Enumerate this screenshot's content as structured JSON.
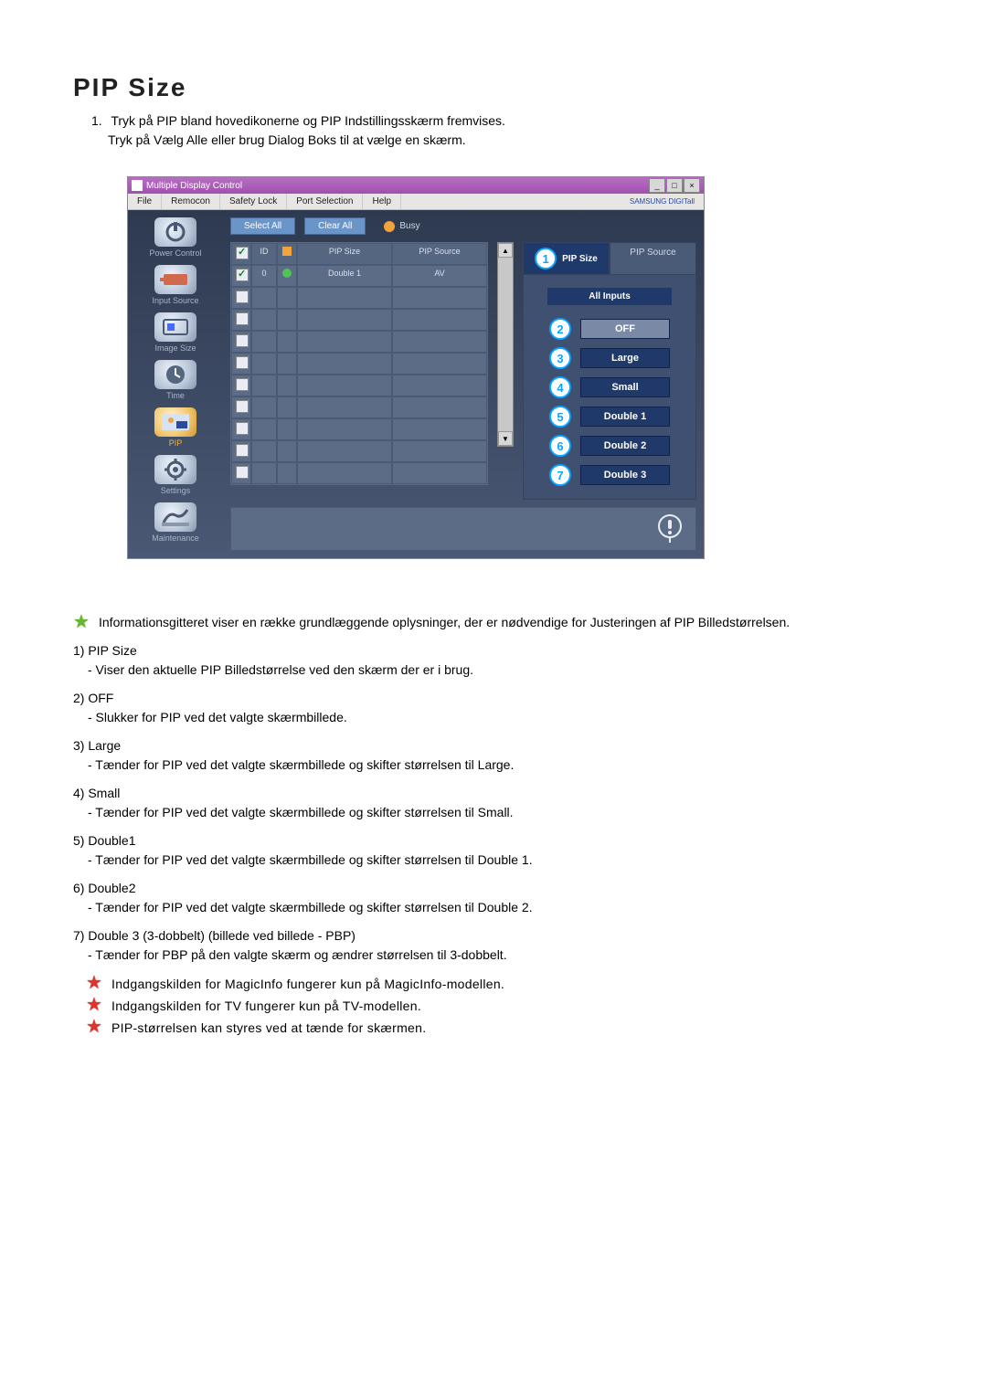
{
  "title": "PIP Size",
  "intro": {
    "num": "1.",
    "line1": "Tryk på PIP bland hovedikonerne og PIP Indstillingsskærm fremvises.",
    "line2": "Tryk på Vælg Alle eller brug Dialog Boks til at vælge en skærm."
  },
  "app": {
    "windowTitle": "Multiple Display Control",
    "brand": "SAMSUNG DIGITall",
    "menu": [
      "File",
      "Remocon",
      "Safety Lock",
      "Port Selection",
      "Help"
    ],
    "sidebar": [
      {
        "label": "Power Control",
        "active": false
      },
      {
        "label": "Input Source",
        "active": false
      },
      {
        "label": "Image Size",
        "active": false
      },
      {
        "label": "Time",
        "active": false
      },
      {
        "label": "PIP",
        "active": true
      },
      {
        "label": "Settings",
        "active": false
      },
      {
        "label": "Maintenance",
        "active": false
      }
    ],
    "buttons": {
      "selectAll": "Select All",
      "clearAll": "Clear All"
    },
    "busy": "Busy",
    "grid": {
      "headers": {
        "chk": "✓",
        "id": "ID",
        "status": "",
        "size": "PIP Size",
        "source": "PIP Source"
      },
      "row": {
        "id": "0",
        "size": "Double 1",
        "source": "AV"
      },
      "blankRows": 9
    },
    "tabs": {
      "pipSize": "PIP Size",
      "pipSource": "PIP Source"
    },
    "allInputs": "All Inputs",
    "options": [
      {
        "num": "2",
        "label": "OFF",
        "variant": "off"
      },
      {
        "num": "3",
        "label": "Large",
        "variant": "normal"
      },
      {
        "num": "4",
        "label": "Small",
        "variant": "normal"
      },
      {
        "num": "5",
        "label": "Double 1",
        "variant": "normal"
      },
      {
        "num": "6",
        "label": "Double 2",
        "variant": "normal"
      },
      {
        "num": "7",
        "label": "Double 3",
        "variant": "normal"
      }
    ],
    "tabBadge": "1"
  },
  "infoText": "Informationsgitteret viser en række grundlæggende oplysninger, der er nødvendige for Justeringen af PIP Billedstørrelsen.",
  "explain": [
    {
      "n": "1)",
      "label": "PIP Size",
      "desc": "- Viser den aktuelle PIP Billedstørrelse ved den skærm der er i brug."
    },
    {
      "n": "2)",
      "label": "OFF",
      "desc": "- Slukker for PIP ved det valgte skærmbillede."
    },
    {
      "n": "3)",
      "label": "Large",
      "desc": "- Tænder for PIP ved det valgte skærmbillede og skifter størrelsen til Large."
    },
    {
      "n": "4)",
      "label": "Small",
      "desc": "- Tænder for PIP ved det valgte skærmbillede og skifter størrelsen til Small."
    },
    {
      "n": "5)",
      "label": "Double1",
      "desc": "- Tænder for PIP ved det valgte skærmbillede og skifter størrelsen til Double 1."
    },
    {
      "n": "6)",
      "label": "Double2",
      "desc": "- Tænder for PIP ved det valgte skærmbillede og skifter størrelsen til Double 2."
    },
    {
      "n": "7)",
      "label": "Double 3 (3-dobbelt) (billede ved billede - PBP)",
      "desc": "- Tænder for PBP på den valgte skærm og ændrer størrelsen til 3-dobbelt."
    }
  ],
  "footnotes": [
    "Indgangskilden for MagicInfo fungerer kun på MagicInfo-modellen.",
    "Indgangskilden for TV fungerer kun på TV-modellen.",
    "PIP-størrelsen kan styres ved at tænde for skærmen."
  ]
}
